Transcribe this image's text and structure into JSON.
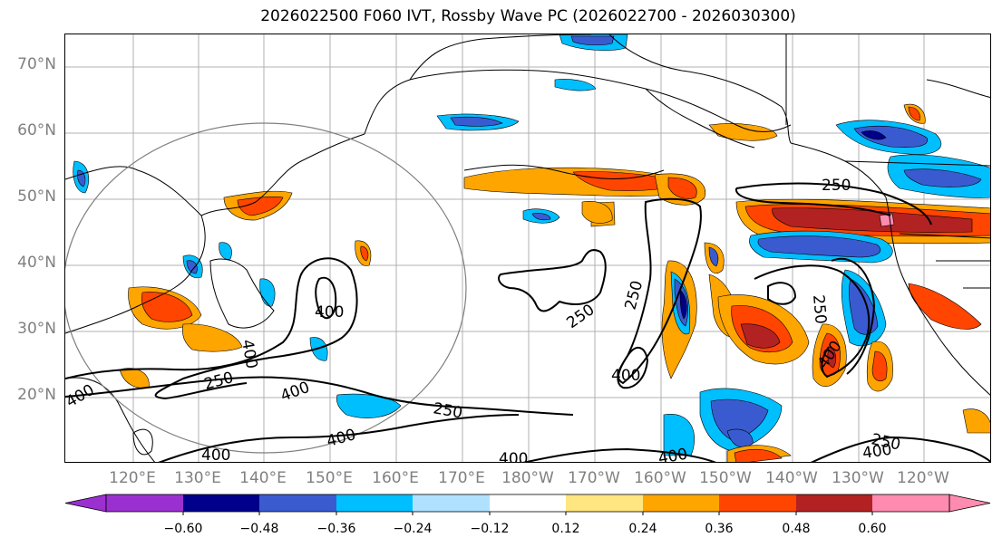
{
  "title": "2026022500 F060 IVT, Rossby Wave PC (2026022700 - 2026030300)",
  "lat_axis": [
    "70°N",
    "60°N",
    "50°N",
    "40°N",
    "30°N",
    "20°N"
  ],
  "lon_axis": [
    "120°E",
    "130°E",
    "140°E",
    "150°E",
    "160°E",
    "170°E",
    "180°W",
    "170°W",
    "160°W",
    "150°W",
    "140°W",
    "130°W",
    "120°W"
  ],
  "colorbar": {
    "ticks": [
      "−0.60",
      "−0.48",
      "−0.36",
      "−0.24",
      "−0.12",
      "0.12",
      "0.24",
      "0.36",
      "0.48",
      "0.60"
    ],
    "colors": [
      "#9b30d0",
      "#00008b",
      "#3a5bd0",
      "#00bfff",
      "#b0e2ff",
      "#ffffff",
      "#ffe680",
      "#ffa500",
      "#ff4500",
      "#b22222",
      "#ff8cb0"
    ]
  },
  "contour_labels": [
    "250",
    "250",
    "250",
    "250",
    "250",
    "250",
    "250",
    "400",
    "400",
    "400",
    "400",
    "400",
    "400",
    "400",
    "400",
    "400",
    "400",
    "400"
  ]
}
